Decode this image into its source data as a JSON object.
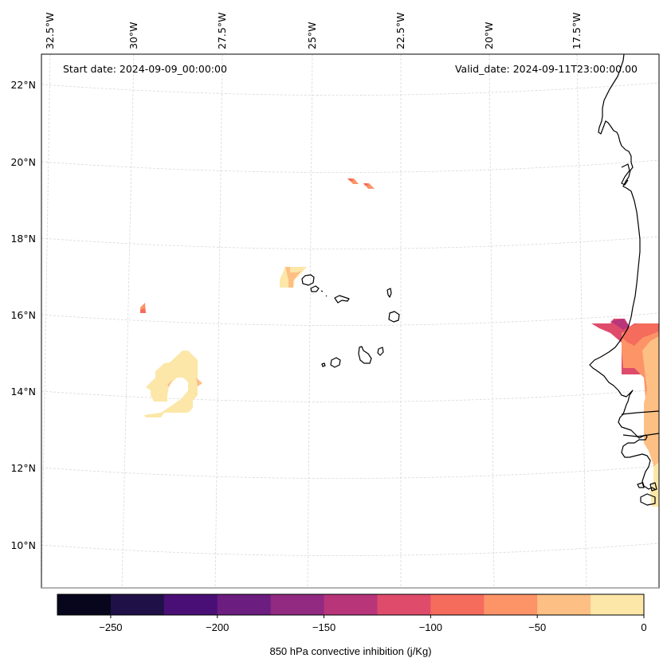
{
  "map": {
    "projection": "lambert-conformal",
    "extent": {
      "lon_min": -32.8,
      "lon_max": -15.9,
      "lat_min": 8.9,
      "lat_max": 22.6
    },
    "start_date_label": "Start date: 2024-09-09_00:00:00",
    "valid_date_label": "Valid_date: 2024-09-11T23:00:00.00",
    "lon_ticks": [
      {
        "value": -32.5,
        "label": "32.5°W"
      },
      {
        "value": -30,
        "label": "30°W"
      },
      {
        "value": -27.5,
        "label": "27.5°W"
      },
      {
        "value": -25,
        "label": "25°W"
      },
      {
        "value": -22.5,
        "label": "22.5°W"
      },
      {
        "value": -20,
        "label": "20°W"
      },
      {
        "value": -17.5,
        "label": "17.5°W"
      }
    ],
    "lat_ticks": [
      {
        "value": 22,
        "label": "22°N"
      },
      {
        "value": 20,
        "label": "20°N"
      },
      {
        "value": 18,
        "label": "18°N"
      },
      {
        "value": 16,
        "label": "16°N"
      },
      {
        "value": 14,
        "label": "14°N"
      },
      {
        "value": 12,
        "label": "12°N"
      },
      {
        "value": 10,
        "label": "10°N"
      }
    ],
    "gridlines": true,
    "coastline_color": "#000000"
  },
  "chart_data": {
    "type": "heatmap",
    "title": "",
    "variable": "850 hPa convective inhibition",
    "units": "j/Kg",
    "colorbar": {
      "label": "850 hPa convective inhibition (j/Kg)",
      "orientation": "horizontal",
      "placement": "bottom",
      "levels": [
        -275,
        -250,
        -225,
        -200,
        -175,
        -150,
        -125,
        -100,
        -75,
        -50,
        -25,
        0
      ],
      "colors": [
        "#07061c",
        "#1f1147",
        "#4a0f76",
        "#6c1d80",
        "#912a80",
        "#b8357a",
        "#df4b6b",
        "#f56b5c",
        "#fc9468",
        "#fdbf84",
        "#fce7a8"
      ],
      "ticks": [
        {
          "value": -250,
          "label": "−250"
        },
        {
          "value": -200,
          "label": "−200"
        },
        {
          "value": -150,
          "label": "−150"
        },
        {
          "value": -100,
          "label": "−100"
        },
        {
          "value": -50,
          "label": "−50"
        },
        {
          "value": 0,
          "label": "0"
        }
      ]
    },
    "regions": [
      {
        "name": "spiral-feature-west",
        "approx_center": {
          "lon": -29.6,
          "lat": 14.1
        },
        "dominant_range": [
          -25,
          0
        ],
        "edge_range": [
          -50,
          -25
        ]
      },
      {
        "name": "small-patch-31.5W-16N",
        "approx_center": {
          "lon": -29.9,
          "lat": 16.2
        },
        "dominant_range": [
          -75,
          -50
        ],
        "edge_range": [
          -125,
          -100
        ]
      },
      {
        "name": "patch-near-santo-antao",
        "approx_center": {
          "lon": -25.7,
          "lat": 17.0
        },
        "dominant_range": [
          -25,
          0
        ],
        "edge_range": [
          -50,
          -25
        ]
      },
      {
        "name": "streaks-19.5N",
        "approx_center": {
          "lon": -23.4,
          "lat": 19.4
        },
        "dominant_range": [
          -100,
          -75
        ],
        "edge_range": [
          -75,
          -50
        ]
      },
      {
        "name": "west-africa-coast-band",
        "approx_center": {
          "lon": -16.3,
          "lat": 13.5
        },
        "dominant_range": [
          -50,
          -25
        ],
        "edge_range": [
          -150,
          -100
        ]
      }
    ]
  }
}
